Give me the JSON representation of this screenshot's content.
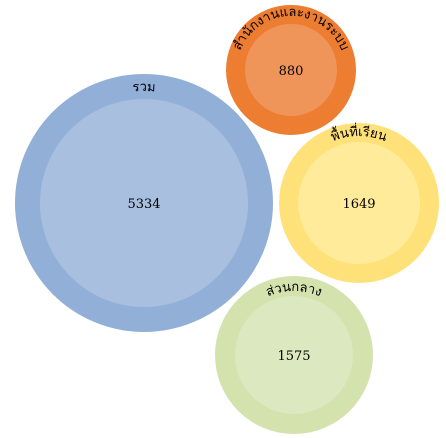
{
  "chart_data": {
    "type": "bubble",
    "title": "",
    "bubbles": [
      {
        "label": "รวม",
        "value": 5334,
        "outer_color": "#92afd7",
        "inner_color": "#a9bfdf"
      },
      {
        "label": "สำนักงานและงานระบบ",
        "value": 880,
        "outer_color": "#ed7d31",
        "inner_color": "#f0955a"
      },
      {
        "label": "พื้นที่เรียน",
        "value": 1649,
        "outer_color": "#ffe17a",
        "inner_color": "#ffeb99"
      },
      {
        "label": "ส่วนกลาง",
        "value": 1575,
        "outer_color": "#d4e2ae",
        "inner_color": "#dce8bf"
      }
    ]
  }
}
